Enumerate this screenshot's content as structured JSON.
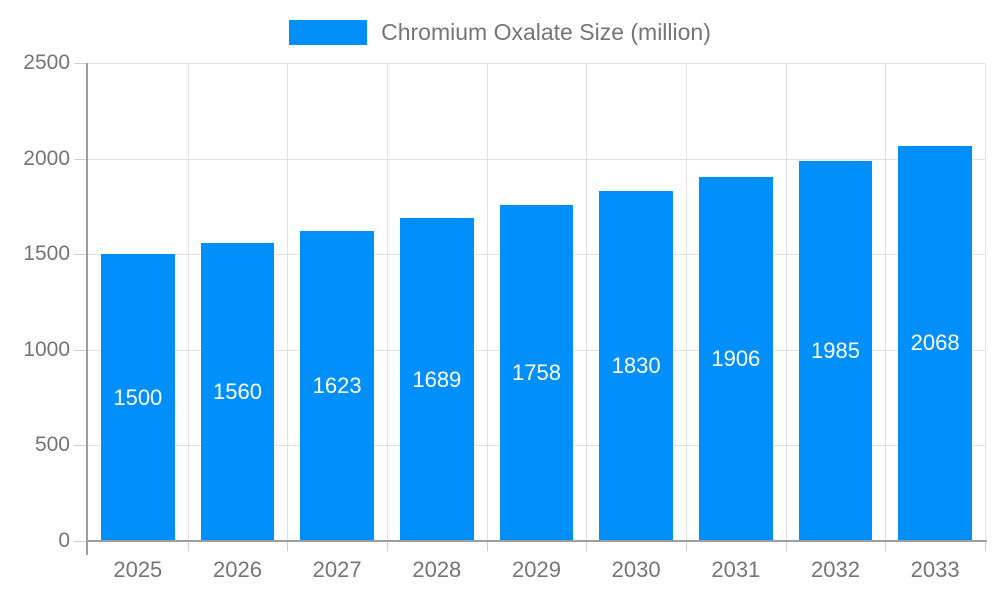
{
  "legend": {
    "label": "Chromium Oxalate Size (million)"
  },
  "chart_data": {
    "type": "bar",
    "title": "Chromium Oxalate Size (million)",
    "categories": [
      "2025",
      "2026",
      "2027",
      "2028",
      "2029",
      "2030",
      "2031",
      "2032",
      "2033"
    ],
    "values": [
      1500,
      1560,
      1623,
      1689,
      1758,
      1830,
      1906,
      1985,
      2068
    ],
    "xlabel": "",
    "ylabel": "",
    "ylim": [
      0,
      2500
    ],
    "yticks": [
      0,
      500,
      1000,
      1500,
      2000,
      2500
    ],
    "grid": true,
    "legend_position": "top",
    "colors": {
      "bar": "#008FFB",
      "bar_label": "#ffffff",
      "axis_text": "#757575",
      "grid_line": "#e2e2e2",
      "axis_line": "#9e9e9e",
      "tick_line": "#cfcfcf"
    }
  }
}
